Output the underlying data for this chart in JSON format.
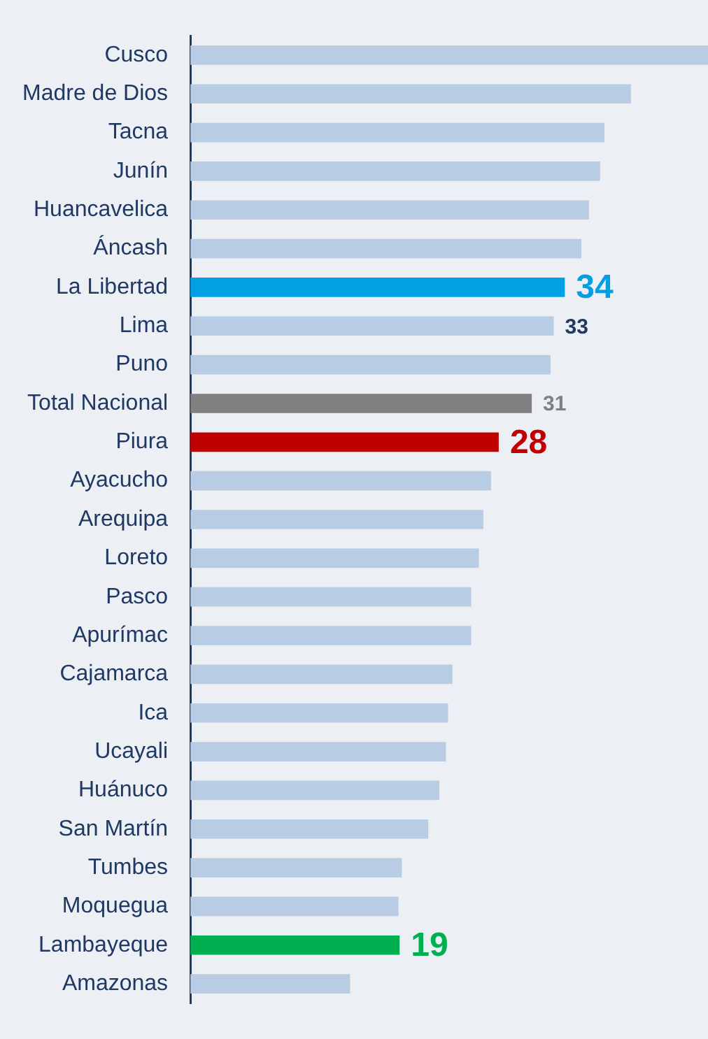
{
  "chart_data": {
    "type": "bar",
    "orientation": "horizontal",
    "categories": [
      "Cusco",
      "Madre de Dios",
      "Tacna",
      "Junín",
      "Huancavelica",
      "Áncash",
      "La Libertad",
      "Lima",
      "Puno",
      "Total Nacional",
      "Piura",
      "Ayacucho",
      "Arequipa",
      "Loreto",
      "Pasco",
      "Apurímac",
      "Cajamarca",
      "Ica",
      "Ucayali",
      "Huánuco",
      "San Martín",
      "Tumbes",
      "Moquegua",
      "Lambayeque",
      "Amazonas"
    ],
    "values": [
      47,
      40,
      37.6,
      37.2,
      36.2,
      35.5,
      34,
      33,
      32.7,
      31,
      28,
      27.3,
      26.6,
      26.2,
      25.5,
      25.5,
      23.8,
      23.4,
      23.2,
      22.6,
      21.6,
      19.2,
      18.9,
      19,
      14.5
    ],
    "colors": [
      "#b8cce4",
      "#b8cce4",
      "#b8cce4",
      "#b8cce4",
      "#b8cce4",
      "#b8cce4",
      "#00a0e3",
      "#b8cce4",
      "#b8cce4",
      "#808080",
      "#c00000",
      "#b8cce4",
      "#b8cce4",
      "#b8cce4",
      "#b8cce4",
      "#b8cce4",
      "#b8cce4",
      "#b8cce4",
      "#b8cce4",
      "#b8cce4",
      "#b8cce4",
      "#b8cce4",
      "#b8cce4",
      "#00b050",
      "#b8cce4"
    ],
    "value_labels": [
      null,
      null,
      null,
      null,
      null,
      null,
      "34",
      "33",
      null,
      "31",
      "28",
      null,
      null,
      null,
      null,
      null,
      null,
      null,
      null,
      null,
      null,
      null,
      null,
      "19",
      null
    ],
    "grid": false,
    "legend": false
  }
}
